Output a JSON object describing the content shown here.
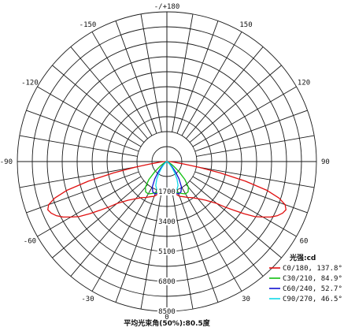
{
  "chart_data": {
    "type": "polar",
    "angle_labels": [
      {
        "deg": 0,
        "text": "0"
      },
      {
        "deg": 30,
        "text": "30"
      },
      {
        "deg": 60,
        "text": "60"
      },
      {
        "deg": 90,
        "text": "90"
      },
      {
        "deg": 120,
        "text": "120"
      },
      {
        "deg": 150,
        "text": "150"
      },
      {
        "deg": 180,
        "text": "-/+180"
      },
      {
        "deg": -150,
        "text": "-150"
      },
      {
        "deg": -120,
        "text": "-120"
      },
      {
        "deg": -90,
        "text": "-90"
      },
      {
        "deg": -60,
        "text": "-60"
      },
      {
        "deg": -30,
        "text": "-30"
      }
    ],
    "ring_values": [
      1700,
      3400,
      5100,
      6800,
      8500
    ],
    "ring_labels": [
      "1700",
      "3400",
      "5100",
      "6800",
      "8500"
    ],
    "rmax": 8500,
    "legend_title": "光强:cd",
    "series": [
      {
        "name": "C0/180, 137.8°",
        "color": "#e01010",
        "points": [
          [
            0,
            1500
          ],
          [
            5,
            1600
          ],
          [
            10,
            1750
          ],
          [
            15,
            1900
          ],
          [
            20,
            2100
          ],
          [
            25,
            2200
          ],
          [
            30,
            2350
          ],
          [
            35,
            2500
          ],
          [
            40,
            2750
          ],
          [
            45,
            3100
          ],
          [
            50,
            3700
          ],
          [
            52,
            4200
          ],
          [
            54,
            4700
          ],
          [
            56,
            5300
          ],
          [
            58,
            5900
          ],
          [
            60,
            6300
          ],
          [
            62,
            6700
          ],
          [
            64,
            7000
          ],
          [
            66,
            7200
          ],
          [
            68,
            7300
          ],
          [
            70,
            7150
          ],
          [
            72,
            6700
          ],
          [
            74,
            5900
          ],
          [
            76,
            4600
          ],
          [
            78,
            3100
          ],
          [
            80,
            1800
          ],
          [
            82,
            900
          ],
          [
            85,
            400
          ],
          [
            88,
            180
          ],
          [
            90,
            80
          ]
        ]
      },
      {
        "name": "C30/210, 84.9°",
        "color": "#10c010",
        "points": [
          [
            0,
            1500
          ],
          [
            5,
            1560
          ],
          [
            10,
            1660
          ],
          [
            15,
            1760
          ],
          [
            20,
            1880
          ],
          [
            25,
            2000
          ],
          [
            30,
            2120
          ],
          [
            35,
            2100
          ],
          [
            40,
            1900
          ],
          [
            45,
            1450
          ],
          [
            50,
            900
          ],
          [
            55,
            500
          ],
          [
            60,
            260
          ],
          [
            65,
            130
          ],
          [
            70,
            70
          ],
          [
            75,
            40
          ],
          [
            80,
            25
          ],
          [
            85,
            15
          ],
          [
            90,
            10
          ]
        ]
      },
      {
        "name": "C60/240, 52.7°",
        "color": "#1010d0",
        "points": [
          [
            0,
            1500
          ],
          [
            5,
            1600
          ],
          [
            10,
            1720
          ],
          [
            15,
            1850
          ],
          [
            20,
            1950
          ],
          [
            25,
            1900
          ],
          [
            30,
            1650
          ],
          [
            35,
            1200
          ],
          [
            40,
            750
          ],
          [
            45,
            420
          ],
          [
            50,
            220
          ],
          [
            55,
            110
          ],
          [
            60,
            55
          ],
          [
            70,
            25
          ],
          [
            80,
            12
          ],
          [
            90,
            6
          ]
        ]
      },
      {
        "name": "C90/270, 46.5°",
        "color": "#10d8e8",
        "points": [
          [
            0,
            1500
          ],
          [
            5,
            1560
          ],
          [
            10,
            1640
          ],
          [
            15,
            1700
          ],
          [
            20,
            1680
          ],
          [
            25,
            1500
          ],
          [
            30,
            1150
          ],
          [
            35,
            750
          ],
          [
            40,
            450
          ],
          [
            45,
            250
          ],
          [
            50,
            130
          ],
          [
            55,
            60
          ],
          [
            60,
            30
          ],
          [
            70,
            12
          ],
          [
            80,
            6
          ],
          [
            90,
            3
          ]
        ]
      }
    ],
    "beam_angle_label": "平均光束角(50%):80.5度"
  }
}
